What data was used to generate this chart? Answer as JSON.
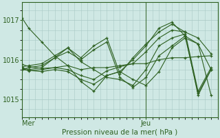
{
  "background_color": "#cfe8e4",
  "grid_color": "#a8c8c4",
  "line_color": "#2d6020",
  "marker_color": "#2d6020",
  "xlabel": "Pression niveau de la mer( hPa )",
  "ylim": [
    1014.55,
    1017.45
  ],
  "yticks": [
    1015,
    1016,
    1017
  ],
  "xlim": [
    0,
    60
  ],
  "xtick_positions": [
    2,
    38
  ],
  "xtick_labels": [
    "Mer",
    "Jeu"
  ],
  "vline_x": 38,
  "lines": [
    [
      0,
      1017.05,
      2,
      1016.8,
      6,
      1016.45,
      10,
      1016.1,
      14,
      1015.85,
      18,
      1015.75,
      22,
      1015.8,
      26,
      1015.8,
      30,
      1015.85,
      34,
      1015.9,
      38,
      1015.9,
      42,
      1016.0,
      46,
      1016.05,
      50,
      1016.05,
      54,
      1016.08,
      58,
      1016.1
    ],
    [
      0,
      1015.88,
      2,
      1015.83,
      6,
      1015.78,
      10,
      1015.8,
      14,
      1015.75,
      18,
      1015.6,
      22,
      1015.5,
      26,
      1015.72,
      30,
      1015.82,
      34,
      1015.9,
      38,
      1016.2,
      42,
      1016.55,
      46,
      1016.75,
      50,
      1016.7,
      54,
      1016.55,
      58,
      1016.15
    ],
    [
      0,
      1015.75,
      2,
      1015.73,
      6,
      1015.7,
      10,
      1015.75,
      14,
      1015.7,
      18,
      1015.5,
      22,
      1015.38,
      26,
      1015.6,
      30,
      1015.7,
      34,
      1016.0,
      38,
      1016.35,
      42,
      1016.8,
      46,
      1016.95,
      50,
      1016.6,
      54,
      1016.4,
      58,
      1015.75
    ],
    [
      0,
      1015.75,
      2,
      1015.8,
      6,
      1015.85,
      10,
      1016.05,
      14,
      1016.2,
      18,
      1016.0,
      22,
      1016.25,
      26,
      1016.45,
      30,
      1015.55,
      34,
      1015.3,
      38,
      1015.55,
      42,
      1016.1,
      46,
      1016.35,
      50,
      1016.6,
      54,
      1015.15,
      58,
      1015.75
    ],
    [
      0,
      1015.78,
      2,
      1015.72,
      6,
      1015.75,
      10,
      1015.8,
      14,
      1015.85,
      18,
      1015.45,
      22,
      1015.2,
      26,
      1015.6,
      30,
      1015.7,
      34,
      1015.5,
      38,
      1015.35,
      42,
      1015.7,
      46,
      1016.3,
      50,
      1016.55,
      54,
      1016.4,
      58,
      1015.1
    ],
    [
      0,
      1015.8,
      2,
      1015.75,
      6,
      1015.8,
      10,
      1016.05,
      14,
      1016.3,
      18,
      1015.95,
      22,
      1015.75,
      26,
      1015.55,
      30,
      1015.5,
      34,
      1015.35,
      38,
      1015.75,
      42,
      1016.35,
      46,
      1016.55,
      50,
      1016.65,
      54,
      1015.1,
      58,
      1015.75
    ],
    [
      0,
      1015.82,
      2,
      1015.85,
      6,
      1015.9,
      10,
      1016.1,
      14,
      1016.3,
      18,
      1016.05,
      22,
      1016.35,
      26,
      1016.55,
      30,
      1015.65,
      34,
      1016.05,
      38,
      1016.4,
      42,
      1016.7,
      46,
      1016.9,
      50,
      1016.7,
      54,
      1015.2,
      58,
      1015.8
    ]
  ]
}
